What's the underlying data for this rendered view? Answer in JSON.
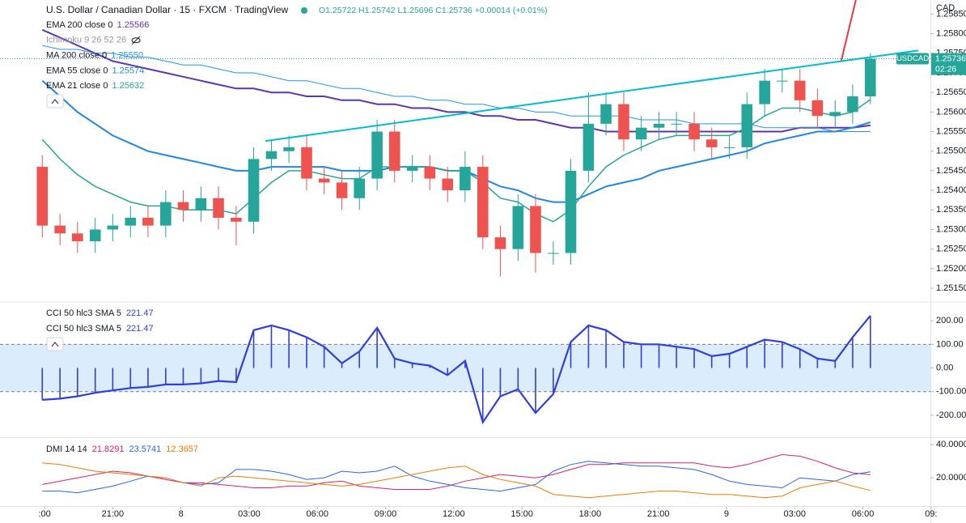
{
  "header": {
    "title": "U.S. Dollar / Canadian Dollar · 15 · FXCM · TradingView",
    "ohlc": [
      "O1.25722",
      "H1.25742",
      "L1.25696",
      "C1.25736",
      "+0.00014 (+0.01%)"
    ]
  },
  "chart_data": [
    {
      "type": "candlestick",
      "axis_unit": "CAD",
      "x": [
        -0.1,
        0.68,
        1.45,
        2.23,
        3.0,
        3.78,
        4.55,
        5.33,
        6.1,
        6.88,
        7.65,
        8.43,
        9.2,
        9.98,
        10.75,
        11.53,
        12.3,
        13.08,
        13.85,
        14.63,
        15.4,
        16.18,
        16.95,
        17.73,
        18.5,
        19.28,
        20.05,
        20.83,
        21.6,
        22.38,
        23.15,
        23.93,
        24.7,
        25.48,
        26.25,
        27.03,
        27.8,
        28.58,
        29.35,
        30.13,
        30.9,
        31.68,
        32.45,
        33.23,
        34.0,
        34.78,
        35.55,
        36.33
      ],
      "xlim": [
        -1.96,
        38.97
      ],
      "xticks": [
        {
          "value": 0,
          "label": ":00"
        },
        {
          "value": 3,
          "label": "21:00"
        },
        {
          "value": 6,
          "label": "8"
        },
        {
          "value": 9,
          "label": "03:00"
        },
        {
          "value": 12,
          "label": "06:00"
        },
        {
          "value": 15,
          "label": "09:00"
        },
        {
          "value": 18,
          "label": "12:00"
        },
        {
          "value": 21,
          "label": "15:00"
        },
        {
          "value": 24,
          "label": "18:00"
        },
        {
          "value": 27,
          "label": "21:00"
        },
        {
          "value": 30,
          "label": "9"
        },
        {
          "value": 33,
          "label": "03:00"
        },
        {
          "value": 36,
          "label": "06:00"
        },
        {
          "value": 39,
          "label": "09:"
        }
      ],
      "ylim": [
        1.25117,
        1.25886
      ],
      "yticks": [
        {
          "value": 1.2585,
          "label": "1.25850"
        },
        {
          "value": 1.258,
          "label": "1.25800"
        },
        {
          "value": 1.2575,
          "label": "1.25750"
        },
        {
          "value": 1.257,
          "label": "1.25700"
        },
        {
          "value": 1.2565,
          "label": "1.25650"
        },
        {
          "value": 1.256,
          "label": "1.25600"
        },
        {
          "value": 1.2555,
          "label": "1.25550"
        },
        {
          "value": 1.255,
          "label": "1.25500"
        },
        {
          "value": 1.2545,
          "label": "1.25450"
        },
        {
          "value": 1.254,
          "label": "1.25400"
        },
        {
          "value": 1.2535,
          "label": "1.25350"
        },
        {
          "value": 1.253,
          "label": "1.25300"
        },
        {
          "value": 1.2525,
          "label": "1.25250"
        },
        {
          "value": 1.252,
          "label": "1.25200"
        },
        {
          "value": 1.2515,
          "label": "1.25150"
        }
      ],
      "open": [
        1.2546,
        1.2531,
        1.2529,
        1.2527,
        1.253,
        1.2531,
        1.2533,
        1.2531,
        1.2537,
        1.2535,
        1.2538,
        1.2533,
        1.2532,
        1.2548,
        1.255,
        1.2551,
        1.2543,
        1.2542,
        1.2538,
        1.2543,
        1.2555,
        1.2545,
        1.2546,
        1.2543,
        1.254,
        1.2546,
        1.2528,
        1.2525,
        1.2536,
        1.2524,
        1.2524,
        1.2545,
        1.2557,
        1.2562,
        1.2553,
        1.2556,
        1.2557,
        1.2557,
        1.2553,
        1.2551,
        1.2551,
        1.2562,
        1.2568,
        1.2568,
        1.2563,
        1.2559,
        1.256,
        1.2564
      ],
      "high": [
        1.2549,
        1.2534,
        1.2532,
        1.2533,
        1.2534,
        1.2536,
        1.2536,
        1.254,
        1.254,
        1.2541,
        1.2541,
        1.2536,
        1.2551,
        1.2553,
        1.2554,
        1.2554,
        1.2546,
        1.2545,
        1.2546,
        1.2558,
        1.2558,
        1.2549,
        1.2549,
        1.2546,
        1.255,
        1.2549,
        1.2531,
        1.2539,
        1.2539,
        1.2527,
        1.2548,
        1.2565,
        1.2565,
        1.2565,
        1.2559,
        1.256,
        1.256,
        1.256,
        1.2556,
        1.2554,
        1.2565,
        1.2571,
        1.2571,
        1.2571,
        1.2566,
        1.2563,
        1.2567,
        1.2575
      ],
      "low": [
        1.2528,
        1.2526,
        1.2524,
        1.2524,
        1.2527,
        1.2528,
        1.2528,
        1.2528,
        1.2532,
        1.2532,
        1.253,
        1.2526,
        1.2529,
        1.2545,
        1.2547,
        1.254,
        1.2539,
        1.2535,
        1.2535,
        1.254,
        1.2542,
        1.2542,
        1.254,
        1.2537,
        1.2537,
        1.2525,
        1.2518,
        1.2522,
        1.2519,
        1.2521,
        1.2521,
        1.2542,
        1.2554,
        1.255,
        1.255,
        1.2553,
        1.2554,
        1.255,
        1.2548,
        1.2548,
        1.2548,
        1.2559,
        1.2565,
        1.256,
        1.2556,
        1.2556,
        1.2557,
        1.2562
      ],
      "close": [
        1.2531,
        1.2529,
        1.2527,
        1.253,
        1.2531,
        1.2533,
        1.2531,
        1.2537,
        1.2535,
        1.2538,
        1.2533,
        1.2532,
        1.2548,
        1.255,
        1.2551,
        1.2543,
        1.2542,
        1.2538,
        1.2543,
        1.2555,
        1.2545,
        1.2546,
        1.2543,
        1.254,
        1.2546,
        1.2528,
        1.2525,
        1.2536,
        1.2524,
        1.2524,
        1.2545,
        1.2557,
        1.2562,
        1.2553,
        1.2556,
        1.2557,
        1.2557,
        1.2553,
        1.2551,
        1.2551,
        1.2562,
        1.2568,
        1.2568,
        1.2563,
        1.2559,
        1.256,
        1.2564,
        1.25736
      ],
      "up_color": "#26a69a",
      "down_color": "#ef5350",
      "hidden_indicator": "Ichimoku 9 26 52 26",
      "series": [
        {
          "name": "EMA 200 close 0",
          "color": "#5e35b1",
          "width": 2,
          "values": [
            1.2581,
            1.2579,
            1.2577,
            1.2575,
            1.2573,
            1.2572,
            1.2571,
            1.257,
            1.2569,
            1.2568,
            1.2567,
            1.2566,
            1.2566,
            1.2565,
            1.2565,
            1.2564,
            1.2564,
            1.2563,
            1.2563,
            1.2562,
            1.2562,
            1.2561,
            1.2561,
            1.256,
            1.256,
            1.2559,
            1.2559,
            1.2558,
            1.2558,
            1.2557,
            1.2556,
            1.2556,
            1.2555,
            1.2555,
            1.2555,
            1.2555,
            1.2555,
            1.2555,
            1.2555,
            1.2555,
            1.2555,
            1.2555,
            1.2555,
            1.2556,
            1.2556,
            1.2556,
            1.2556,
            1.25566
          ]
        },
        {
          "name": "MA 200 close 0",
          "color": "#2196f3",
          "width": 1,
          "value_label": "1.25550",
          "values": [
            1.2577,
            1.2576,
            1.2576,
            1.2575,
            1.2575,
            1.2574,
            1.2574,
            1.2573,
            1.2572,
            1.2572,
            1.2571,
            1.257,
            1.257,
            1.2569,
            1.2568,
            1.2568,
            1.2567,
            1.2566,
            1.2566,
            1.2565,
            1.2564,
            1.2564,
            1.2563,
            1.2563,
            1.2562,
            1.2562,
            1.2561,
            1.2561,
            1.256,
            1.256,
            1.2559,
            1.2559,
            1.2559,
            1.2559,
            1.2558,
            1.2558,
            1.2558,
            1.2557,
            1.2557,
            1.2557,
            1.2557,
            1.2556,
            1.2556,
            1.2556,
            1.2556,
            1.2555,
            1.2555,
            1.2555
          ]
        },
        {
          "name": "EMA 55 close 0",
          "color": "#1e88e5",
          "width": 2,
          "values": [
            1.2568,
            1.2564,
            1.256,
            1.2557,
            1.2554,
            1.2552,
            1.255,
            1.2549,
            1.2548,
            1.2547,
            1.2546,
            1.2545,
            1.2545,
            1.2546,
            1.2546,
            1.2546,
            1.2546,
            1.2545,
            1.2545,
            1.2545,
            1.2546,
            1.2546,
            1.2546,
            1.2545,
            1.2545,
            1.2543,
            1.2541,
            1.254,
            1.2538,
            1.2537,
            1.2537,
            1.2539,
            1.2541,
            1.2542,
            1.2543,
            1.2545,
            1.2546,
            1.2547,
            1.2548,
            1.2549,
            1.255,
            1.2552,
            1.2553,
            1.2554,
            1.2555,
            1.2555,
            1.2556,
            1.25574
          ]
        },
        {
          "name": "EMA 21 close 0",
          "color": "#26a69a",
          "width": 1.5,
          "values": [
            1.2553,
            1.2548,
            1.2544,
            1.2541,
            1.2539,
            1.2537,
            1.2536,
            1.2536,
            1.2535,
            1.2535,
            1.2535,
            1.2534,
            1.2538,
            1.2542,
            1.2545,
            1.2545,
            1.2544,
            1.2543,
            1.2543,
            1.2546,
            1.2546,
            1.2546,
            1.2546,
            1.2545,
            1.2545,
            1.2542,
            1.2538,
            1.2537,
            1.2534,
            1.2532,
            1.2535,
            1.2541,
            1.2546,
            1.2549,
            1.2551,
            1.2553,
            1.2554,
            1.2554,
            1.2554,
            1.2554,
            1.2556,
            1.2559,
            1.2561,
            1.2561,
            1.256,
            1.2559,
            1.256,
            1.25632
          ]
        }
      ],
      "trendlines": [
        {
          "color": "#00bcd4",
          "x": [
            9.72,
            38.43
          ],
          "y": [
            1.25526,
            1.25757
          ]
        },
        {
          "color": "#f23645",
          "x": [
            35.05,
            35.69
          ],
          "y": [
            1.25731,
            1.25886
          ]
        }
      ],
      "last_price": {
        "symbol": "USDCAD",
        "value": 1.25736,
        "countdown": "02:26",
        "color": "#26a69a"
      }
    },
    {
      "type": "oscillator",
      "legend": [
        "CCI 50 hlc3 SMA 5",
        "CCI 50 hlc3 SMA 5"
      ],
      "color": "#2f3fe0",
      "values": [
        -135,
        -130,
        -120,
        -105,
        -95,
        -85,
        -80,
        -70,
        -70,
        -65,
        -55,
        -60,
        160,
        180,
        160,
        130,
        90,
        20,
        70,
        170,
        40,
        20,
        10,
        -30,
        30,
        -230,
        -120,
        -90,
        -190,
        -110,
        110,
        180,
        160,
        110,
        100,
        100,
        90,
        80,
        50,
        60,
        90,
        120,
        110,
        80,
        40,
        30,
        130,
        221.47
      ],
      "band": [
        -100,
        100
      ],
      "band_color": "#cfe6fb",
      "ylim": [
        -293,
        276
      ],
      "yticks": [
        {
          "value": 200,
          "label": "200.00"
        },
        {
          "value": 100,
          "label": "100.00"
        },
        {
          "value": 0,
          "label": "0.00"
        },
        {
          "value": -100,
          "label": "-100.00"
        },
        {
          "value": -200,
          "label": "-200.00"
        }
      ]
    },
    {
      "type": "line",
      "legend_title": "DMI 14 14",
      "series": [
        {
          "color": "#e91e63",
          "values": [
            16,
            18,
            20,
            22,
            24,
            23,
            21,
            19,
            17,
            17,
            16,
            15,
            14,
            14,
            15,
            15,
            17,
            18,
            15,
            14,
            13,
            13,
            13,
            15,
            18,
            20,
            22,
            21,
            20,
            22,
            25,
            28,
            28,
            29,
            29,
            29,
            29,
            29,
            27,
            26,
            28,
            31,
            34,
            33,
            30,
            26,
            23,
            21.8291
          ]
        },
        {
          "color": "#2962ff",
          "values": [
            12,
            12,
            11,
            13,
            15,
            18,
            21,
            20,
            17,
            16,
            17,
            25,
            25,
            24,
            22,
            19,
            20,
            24,
            23,
            24,
            27,
            21,
            18,
            16,
            14,
            13,
            12,
            14,
            16,
            24,
            28,
            30,
            29,
            28,
            27,
            27,
            26,
            25,
            22,
            18,
            16,
            15,
            14,
            20,
            19,
            18,
            22,
            23.5741
          ]
        },
        {
          "color": "#f57c00",
          "values": [
            29,
            28,
            26,
            24,
            23,
            22,
            21,
            20,
            17,
            15,
            20,
            21,
            20,
            19,
            18,
            17,
            16,
            15,
            16,
            18,
            20,
            22,
            24,
            26,
            27,
            22,
            19,
            17,
            15,
            10,
            9,
            8,
            9,
            10,
            11,
            12,
            12,
            11,
            10,
            10,
            9,
            8,
            9,
            14,
            16,
            18,
            15,
            12.3657
          ]
        }
      ],
      "ylim": [
        3,
        44
      ],
      "yticks": [
        {
          "value": 40,
          "label": "40.0000"
        },
        {
          "value": 20,
          "label": "20.0000"
        }
      ]
    }
  ]
}
